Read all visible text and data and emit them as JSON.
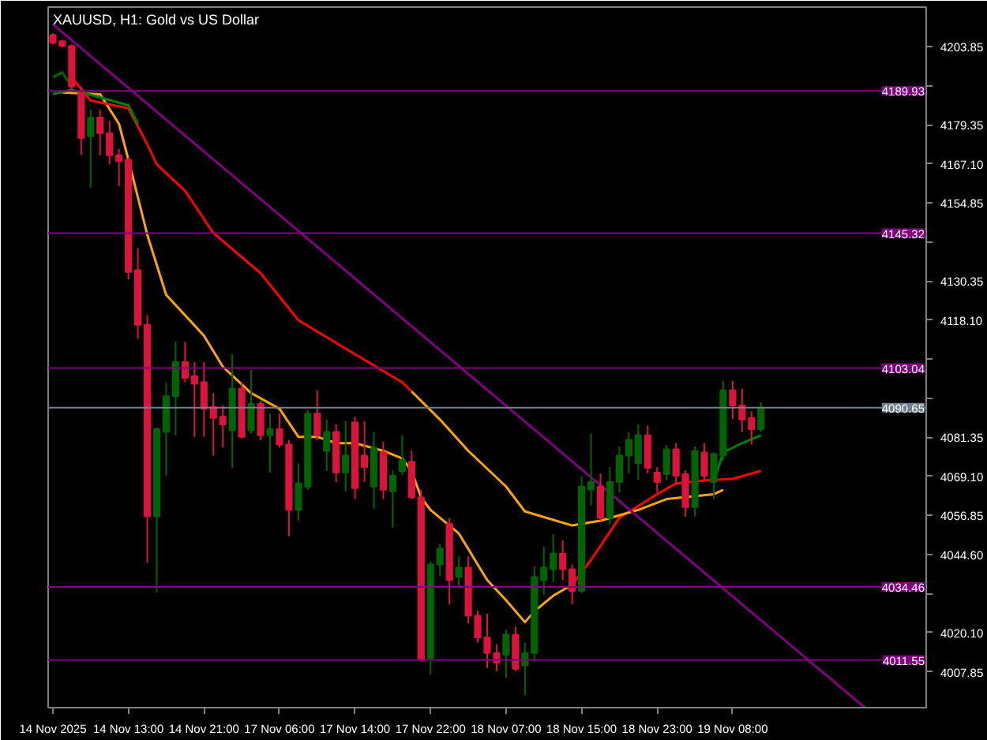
{
  "chart_data": {
    "type": "candlestick",
    "title": "XAUUSD, H1:  Gold vs US Dollar",
    "categories": [
      "14 Nov 2025",
      null,
      null,
      null,
      null,
      null,
      null,
      null,
      "14 Nov 13:00",
      null,
      null,
      null,
      null,
      null,
      null,
      null,
      "14 Nov 21:00",
      null,
      null,
      null,
      null,
      null,
      null,
      null,
      "17 Nov 06:00",
      null,
      null,
      null,
      null,
      null,
      null,
      null,
      "17 Nov 14:00",
      null,
      null,
      null,
      null,
      null,
      null,
      null,
      "17 Nov 22:00",
      null,
      null,
      null,
      null,
      null,
      null,
      null,
      "18 Nov 07:00",
      null,
      null,
      null,
      null,
      null,
      null,
      null,
      "18 Nov 15:00",
      null,
      null,
      null,
      null,
      null,
      null,
      null,
      "18 Nov 23:00",
      null,
      null,
      null,
      null,
      null,
      null,
      null,
      "19 Nov 08:00",
      null,
      null,
      null,
      null,
      null,
      null,
      null,
      null,
      null,
      null,
      null,
      null,
      null,
      null,
      null,
      null,
      null,
      null,
      null,
      null
    ],
    "ohlc": [
      [
        4207.4,
        4208,
        4204.5,
        4205.0
      ],
      [
        4205.5,
        4206,
        4203.5,
        4204.0
      ],
      [
        4204.0,
        4204.5,
        4190.5,
        4191.3
      ],
      [
        4189.3,
        4191.3,
        4169.8,
        4175.2
      ],
      [
        4175.7,
        4184.0,
        4159.6,
        4181.6
      ],
      [
        4181.6,
        4184.0,
        4169.8,
        4176.7
      ],
      [
        4176.7,
        4180.6,
        4166.9,
        4169.8
      ],
      [
        4169.8,
        4171.8,
        4160.1,
        4167.9
      ],
      [
        4168.4,
        4169.0,
        4130.8,
        4133.2
      ],
      [
        4133.7,
        4140.6,
        4112.2,
        4116.6
      ],
      [
        4116.6,
        4119.6,
        4042.0,
        4056.6
      ],
      [
        4056.6,
        4084.4,
        4032.7,
        4083.9
      ],
      [
        4083.0,
        4098.6,
        4069.3,
        4094.2
      ],
      [
        4094.2,
        4111.3,
        4082.0,
        4104.9
      ],
      [
        4104.9,
        4111.3,
        4098.6,
        4100.0
      ],
      [
        4100.5,
        4104.9,
        4081.5,
        4098.1
      ],
      [
        4098.6,
        4104.9,
        4081.5,
        4090.3
      ],
      [
        4090.8,
        4095.2,
        4075.6,
        4087.4
      ],
      [
        4087.8,
        4091.3,
        4078.1,
        4085.4
      ],
      [
        4083.5,
        4107.4,
        4071.8,
        4096.6
      ],
      [
        4096.6,
        4098.6,
        4081.0,
        4081.5
      ],
      [
        4083.5,
        4102.5,
        4082.5,
        4091.8
      ],
      [
        4091.8,
        4092.8,
        4080.5,
        4082.0
      ],
      [
        4082.0,
        4088.8,
        4070.3,
        4083.9
      ],
      [
        4083.9,
        4088.8,
        4078.1,
        4079.1
      ],
      [
        4079.1,
        4080.5,
        4050.3,
        4058.6
      ],
      [
        4058.6,
        4073.2,
        4055.2,
        4066.9
      ],
      [
        4065.9,
        4089.8,
        4064.9,
        4088.8
      ],
      [
        4088.8,
        4096.1,
        4080.5,
        4082.0
      ],
      [
        4077.1,
        4086.9,
        4070.8,
        4083.0
      ],
      [
        4083.0,
        4085.4,
        4067.3,
        4070.3
      ],
      [
        4070.3,
        4086.4,
        4064.4,
        4075.6
      ],
      [
        4086.0,
        4087.8,
        4062.0,
        4065.4
      ],
      [
        4075.6,
        4086.4,
        4067.3,
        4072.0
      ],
      [
        4065.9,
        4083.0,
        4059.0,
        4078.1
      ],
      [
        4076.6,
        4080.0,
        4062.0,
        4064.9
      ],
      [
        4064.4,
        4071.0,
        4053.0,
        4069.3
      ],
      [
        4070.8,
        4082.0,
        4069.5,
        4074.2
      ],
      [
        4073.7,
        4077.1,
        4062.0,
        4062.5
      ],
      [
        4062.5,
        4065.0,
        4011.0,
        4011.7
      ],
      [
        4012.2,
        4042.5,
        4007.0,
        4041.5
      ],
      [
        4041.5,
        4048.0,
        4038.0,
        4046.4
      ],
      [
        4054.2,
        4056.0,
        4029.0,
        4036.6
      ],
      [
        4037.6,
        4044.0,
        4034.0,
        4040.5
      ],
      [
        4040.5,
        4044.0,
        4023.0,
        4025.4
      ],
      [
        4025.4,
        4027.0,
        4017.0,
        4018.6
      ],
      [
        4018.6,
        4026.0,
        4009.0,
        4013.7
      ],
      [
        4013.7,
        4016.5,
        4008.0,
        4010.7
      ],
      [
        4013.2,
        4021.0,
        4006.0,
        4019.5
      ],
      [
        4019.5,
        4022.0,
        4008.0,
        4008.8
      ],
      [
        4009.8,
        4017.0,
        4000.5,
        4013.7
      ],
      [
        4013.7,
        4041.0,
        4011.0,
        4037.6
      ],
      [
        4036.6,
        4047.0,
        4032.0,
        4040.5
      ],
      [
        4040.0,
        4051.0,
        4036.0,
        4044.9
      ],
      [
        4044.9,
        4049.0,
        4036.5,
        4040.0
      ],
      [
        4040.0,
        4041.5,
        4029.0,
        4033.2
      ],
      [
        4033.2,
        4069.0,
        4032.5,
        4065.9
      ],
      [
        4064.9,
        4082.5,
        4060.0,
        4067.3
      ],
      [
        4065.9,
        4070.0,
        4055.2,
        4056.1
      ],
      [
        4056.1,
        4072.0,
        4054.0,
        4067.3
      ],
      [
        4067.3,
        4078.5,
        4064.0,
        4075.6
      ],
      [
        4075.6,
        4083.0,
        4070.0,
        4080.5
      ],
      [
        4073.2,
        4085.4,
        4068.0,
        4082.0
      ],
      [
        4082.0,
        4085.0,
        4070.0,
        4071.8
      ],
      [
        4070.3,
        4072.0,
        4064.0,
        4067.3
      ],
      [
        4069.8,
        4079.0,
        4068.0,
        4077.6
      ],
      [
        4077.6,
        4079.5,
        4066.5,
        4069.3
      ],
      [
        4069.8,
        4071.0,
        4056.5,
        4059.5
      ],
      [
        4059.5,
        4078.5,
        4056.5,
        4077.1
      ],
      [
        4076.6,
        4079.5,
        4068.0,
        4069.3
      ],
      [
        4067.3,
        4076.6,
        4062.0,
        4076.1
      ],
      [
        4075.6,
        4099.0,
        4074.0,
        4096.1
      ],
      [
        4096.1,
        4099.0,
        4087.0,
        4091.3
      ],
      [
        4091.3,
        4096.6,
        4083.0,
        4086.9
      ],
      [
        4087.4,
        4089.5,
        4079.1,
        4083.9
      ],
      [
        4083.9,
        4092.3,
        4083.0,
        4090.65
      ],
      null,
      null,
      null,
      null,
      null,
      null,
      null,
      null,
      null,
      null,
      null,
      null,
      null,
      null,
      null,
      null,
      null
    ],
    "colors": [
      "#dc143c",
      "#dc143c",
      "#dc143c",
      "#dc143c",
      "#006400",
      "#dc143c",
      "#dc143c",
      "#dc143c",
      "#dc143c",
      "#dc143c",
      "#dc143c",
      "#006400",
      "#006400",
      "#006400",
      "#dc143c",
      "#dc143c",
      "#dc143c",
      "#dc143c",
      "#dc143c",
      "#006400",
      "#dc143c",
      "#006400",
      "#dc143c",
      "#006400",
      "#dc143c",
      "#dc143c",
      "#006400",
      "#006400",
      "#dc143c",
      "#006400",
      "#dc143c",
      "#006400",
      "#dc143c",
      "#dc143c",
      "#006400",
      "#dc143c",
      "#006400",
      "#006400",
      "#dc143c",
      "#dc143c",
      "#006400",
      "#006400",
      "#dc143c",
      "#006400",
      "#dc143c",
      "#dc143c",
      "#dc143c",
      "#dc143c",
      "#006400",
      "#dc143c",
      "#006400",
      "#006400",
      "#006400",
      "#006400",
      "#dc143c",
      "#dc143c",
      "#006400",
      "#006400",
      "#dc143c",
      "#006400",
      "#006400",
      "#006400",
      "#006400",
      "#dc143c",
      "#dc143c",
      "#006400",
      "#dc143c",
      "#dc143c",
      "#006400",
      "#dc143c",
      "#006400",
      "#006400",
      "#dc143c",
      "#dc143c",
      "#dc143c",
      "#006400",
      null,
      null,
      null,
      null,
      null,
      null,
      null,
      null,
      null,
      null,
      null,
      null,
      null,
      null,
      null,
      null,
      null
    ],
    "series": [
      {
        "type": "line",
        "color": "#ffa500",
        "values": [
          null,
          4189.4,
          null,
          null,
          null,
          4188.9,
          null,
          4179.6,
          4168.4,
          null,
          4144.8,
          null,
          4126.0,
          null,
          null,
          null,
          4113.2,
          null,
          4103.5,
          null,
          null,
          4095.2,
          null,
          null,
          4090.3,
          null,
          4081.5,
          null,
          4081.5,
          null,
          4079.5,
          null,
          4079.5,
          null,
          null,
          4077.1,
          null,
          4074.7,
          4070.8,
          4062.5,
          4058.6,
          null,
          null,
          4051.2,
          null,
          null,
          4036.6,
          null,
          4030.3,
          null,
          4023.4,
          4026.8,
          null,
          4031.7,
          null,
          4035.1,
          null,
          null,
          null,
          null,
          null,
          null,
          null,
          null,
          null,
          null,
          null,
          null,
          null,
          null,
          null,
          null,
          null,
          null,
          null,
          null,
          null,
          null,
          null,
          null,
          null,
          null,
          null,
          null,
          null,
          null,
          null,
          null,
          null,
          null,
          null,
          null,
          null
        ]
      },
      {
        "type": "line",
        "color": "#ff0000",
        "values": [
          null,
          null,
          null,
          null,
          null,
          null,
          null,
          null,
          null,
          null,
          null,
          null,
          null,
          null,
          null,
          null,
          null,
          null,
          null,
          null,
          null,
          null,
          null,
          null,
          null,
          null,
          null,
          null,
          null,
          null,
          null,
          null,
          null,
          null,
          null,
          null,
          null,
          null,
          null,
          null,
          null,
          null,
          null,
          null,
          null,
          null,
          null,
          null,
          null,
          null,
          null,
          null,
          null,
          null,
          null,
          4035.1,
          null,
          4042.9,
          null,
          null,
          4056.1,
          null,
          null,
          null,
          4063.5,
          null,
          4066.9,
          null,
          null,
          4067.8,
          null,
          null,
          4068.3,
          null,
          null,
          4070.8,
          null,
          null,
          null,
          null,
          null,
          null,
          null,
          null,
          null,
          null,
          null,
          null,
          null,
          null,
          null,
          null,
          null
        ]
      },
      {
        "type": "line",
        "color": "#ff0000",
        "values": [
          null,
          null,
          4194.2,
          null,
          4186.9,
          null,
          null,
          null,
          4184.5,
          null,
          4173.2,
          4166.9,
          null,
          null,
          4158.6,
          null,
          null,
          4145.4,
          null,
          null,
          null,
          null,
          4132.8,
          null,
          null,
          null,
          4118.1,
          null,
          null,
          null,
          null,
          null,
          4107.4,
          null,
          null,
          null,
          null,
          4098.6,
          4095.7,
          null,
          null,
          null,
          null,
          null,
          null,
          null,
          null,
          null,
          null,
          null,
          null,
          null,
          null,
          null,
          null,
          null,
          null,
          null,
          null,
          null,
          null,
          null,
          null,
          null,
          null,
          null,
          null,
          null,
          null,
          null,
          null,
          null,
          null,
          null,
          null,
          null,
          null,
          null,
          null,
          null,
          null,
          null,
          null,
          null,
          null,
          null,
          null,
          null,
          null,
          null,
          null,
          null,
          null
        ]
      },
      {
        "type": "line",
        "color": "#ffa500",
        "values": [
          null,
          null,
          null,
          null,
          null,
          null,
          null,
          null,
          null,
          null,
          null,
          null,
          null,
          null,
          null,
          null,
          null,
          null,
          null,
          null,
          null,
          null,
          null,
          null,
          null,
          null,
          null,
          null,
          null,
          null,
          null,
          null,
          null,
          null,
          null,
          null,
          null,
          null,
          4095.7,
          null,
          null,
          4086.9,
          null,
          null,
          4077.1,
          null,
          null,
          null,
          4065.9,
          null,
          4058.1,
          null,
          null,
          null,
          null,
          4053.7,
          null,
          null,
          4055.2,
          null,
          null,
          null,
          4058.6,
          null,
          null,
          4062.0,
          null,
          null,
          null,
          null,
          4063.5,
          4064.9,
          null,
          null,
          null,
          null,
          null,
          null,
          null,
          null,
          null,
          null,
          null,
          null,
          null,
          null,
          null,
          null,
          null,
          null,
          null,
          null,
          null
        ]
      },
      {
        "type": "line",
        "color": "#008000",
        "values": [
          4188.9,
          null,
          4190.3,
          null,
          null,
          4187.9,
          null,
          null,
          4185.4,
          4179.6,
          null,
          null,
          null,
          null,
          null,
          null,
          null,
          null,
          null,
          null,
          null,
          null,
          null,
          null,
          null,
          null,
          null,
          null,
          null,
          null,
          null,
          null,
          null,
          null,
          null,
          null,
          null,
          null,
          null,
          null,
          null,
          null,
          null,
          null,
          null,
          null,
          null,
          null,
          null,
          null,
          null,
          null,
          null,
          null,
          null,
          null,
          null,
          null,
          null,
          null,
          null,
          null,
          null,
          null,
          null,
          null,
          null,
          null,
          null,
          null,
          null,
          null,
          null,
          null,
          null,
          null,
          null,
          null,
          null,
          null,
          null,
          null,
          null,
          null,
          null,
          null,
          null,
          null,
          null,
          null,
          null,
          null,
          null
        ]
      },
      {
        "type": "line",
        "color": "#006400",
        "values": [
          4194.2,
          4195.7,
          4191.3,
          null,
          null,
          null,
          null,
          null,
          null,
          null,
          null,
          null,
          null,
          null,
          null,
          null,
          null,
          null,
          null,
          null,
          null,
          null,
          null,
          null,
          null,
          null,
          null,
          null,
          null,
          null,
          null,
          null,
          null,
          null,
          null,
          null,
          null,
          null,
          null,
          null,
          null,
          null,
          null,
          null,
          null,
          null,
          null,
          null,
          null,
          null,
          null,
          null,
          null,
          null,
          null,
          null,
          null,
          null,
          null,
          null,
          null,
          null,
          null,
          null,
          null,
          null,
          null,
          null,
          null,
          null,
          null,
          null,
          null,
          null,
          null,
          null,
          null,
          null,
          null,
          null,
          null,
          null,
          null,
          null,
          null,
          null,
          null,
          null,
          null,
          null,
          null,
          null,
          null
        ]
      },
      {
        "type": "line",
        "color": "#008000",
        "values": [
          null,
          null,
          null,
          null,
          null,
          null,
          null,
          null,
          null,
          null,
          null,
          null,
          null,
          null,
          null,
          null,
          null,
          null,
          null,
          null,
          null,
          null,
          null,
          null,
          null,
          null,
          null,
          null,
          null,
          null,
          null,
          null,
          null,
          null,
          null,
          null,
          null,
          null,
          null,
          null,
          null,
          null,
          null,
          null,
          null,
          null,
          null,
          null,
          null,
          null,
          null,
          null,
          null,
          null,
          null,
          null,
          null,
          null,
          null,
          null,
          null,
          null,
          null,
          null,
          null,
          null,
          null,
          null,
          null,
          null,
          4067.3,
          4076.6,
          null,
          4079.5,
          null,
          4082.0,
          null,
          null,
          null,
          null,
          null,
          null,
          null,
          null,
          null,
          null,
          null,
          null,
          null,
          null,
          null,
          null,
          null
        ]
      },
      {
        "type": "line",
        "color": "#800080",
        "values": [
          4210.8,
          null,
          null,
          null,
          null,
          null,
          null,
          null,
          null,
          null,
          null,
          null,
          null,
          null,
          null,
          null,
          null,
          null,
          null,
          null,
          null,
          null,
          null,
          null,
          null,
          null,
          null,
          null,
          null,
          null,
          null,
          null,
          null,
          null,
          null,
          null,
          null,
          null,
          null,
          null,
          null,
          null,
          null,
          null,
          null,
          null,
          null,
          null,
          null,
          null,
          null,
          null,
          null,
          null,
          null,
          null,
          null,
          null,
          null,
          null,
          null,
          null,
          null,
          null,
          null,
          null,
          null,
          null,
          null,
          null,
          null,
          null,
          null,
          null,
          null,
          null,
          null,
          null,
          null,
          null,
          null,
          null,
          null,
          null,
          null,
          null,
          3996.6,
          null,
          null,
          null,
          null,
          null,
          null
        ]
      }
    ],
    "ref_lines": [
      {
        "axis": "y",
        "value": 4189.93,
        "label": "4189.93",
        "color": "#800080"
      },
      {
        "axis": "y",
        "value": 4145.32,
        "label": "4145.32",
        "color": "#800080"
      },
      {
        "axis": "y",
        "value": 4103.04,
        "label": "4103.04",
        "color": "#800080"
      },
      {
        "axis": "y",
        "value": 4090.65,
        "label": "4090.65",
        "color": "#708090"
      },
      {
        "axis": "y",
        "value": 4034.46,
        "label": "4034.46",
        "color": "#800080"
      },
      {
        "axis": "y",
        "value": 4011.55,
        "label": "4011.55",
        "color": "#800080"
      }
    ],
    "ylim": [
      3996.6,
      4216.2
    ],
    "yticks": [
      {
        "value": 4203.85,
        "label": "4203.85"
      },
      {
        "value": 4191.6,
        "label": null
      },
      {
        "value": 4179.35,
        "label": "4179.35"
      },
      {
        "value": 4167.1,
        "label": "4167.10"
      },
      {
        "value": 4154.85,
        "label": "4154.85"
      },
      {
        "value": 4142.6,
        "label": null
      },
      {
        "value": 4130.35,
        "label": "4130.35"
      },
      {
        "value": 4118.1,
        "label": "4118.10"
      },
      {
        "value": 4105.85,
        "label": null
      },
      {
        "value": 4093.6,
        "label": null
      },
      {
        "value": 4081.35,
        "label": "4081.35"
      },
      {
        "value": 4069.1,
        "label": "4069.10"
      },
      {
        "value": 4056.85,
        "label": "4056.85"
      },
      {
        "value": 4044.6,
        "label": "4044.60"
      },
      {
        "value": 4032.35,
        "label": null
      },
      {
        "value": 4020.1,
        "label": "4020.10"
      },
      {
        "value": 4007.85,
        "label": "4007.85"
      }
    ]
  }
}
